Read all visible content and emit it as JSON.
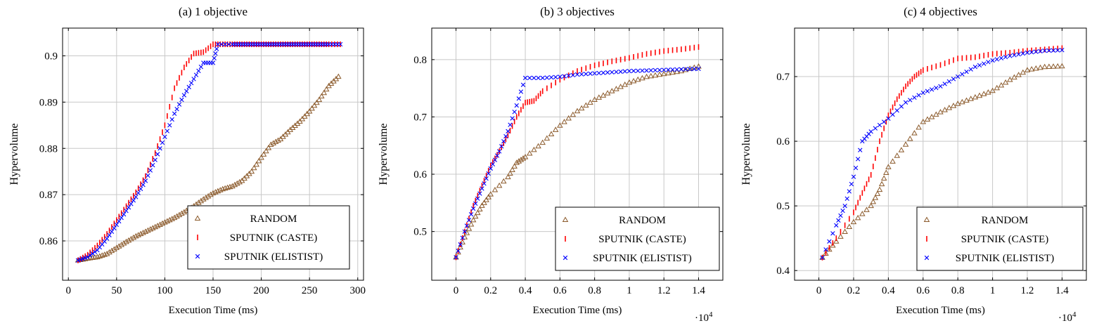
{
  "figure": {
    "panels_count": 3
  },
  "colors": {
    "random": "#8b5a2b",
    "caste": "#ff0000",
    "elitist": "#0000ff",
    "grid": "#c8c8c8"
  },
  "legend": {
    "entries": [
      "RANDOM",
      "SPUTNIK (CASTE)",
      "SPUTNIK (ELISTIST)"
    ],
    "markers": [
      "triangle-icon",
      "bar-icon",
      "cross-icon"
    ],
    "placement": "bottom-right"
  },
  "chart_data": [
    {
      "type": "scatter",
      "title": "(a) 1 objective",
      "xlabel": "Execution Time (ms)",
      "ylabel": "Hypervolume",
      "x_multiplier": "",
      "xlim": [
        -6,
        306
      ],
      "ylim": [
        0.8515,
        0.906
      ],
      "xticks": [
        0,
        50,
        100,
        150,
        200,
        250,
        300
      ],
      "xtick_labels": [
        "0",
        "50",
        "100",
        "150",
        "200",
        "250",
        "300"
      ],
      "yticks": [
        0.86,
        0.87,
        0.88,
        0.89,
        0.9
      ],
      "ytick_labels": [
        "0.86",
        "0.87",
        "0.88",
        "0.89",
        "0.9"
      ],
      "grid": true,
      "series": [
        {
          "name": "RANDOM",
          "points": [
            [
              10,
              0.8558
            ],
            [
              20,
              0.8562
            ],
            [
              30,
              0.8565
            ],
            [
              40,
              0.8572
            ],
            [
              50,
              0.8585
            ],
            [
              60,
              0.8598
            ],
            [
              70,
              0.861
            ],
            [
              80,
              0.862
            ],
            [
              90,
              0.863
            ],
            [
              100,
              0.864
            ],
            [
              110,
              0.865
            ],
            [
              120,
              0.8662
            ],
            [
              130,
              0.8675
            ],
            [
              140,
              0.869
            ],
            [
              150,
              0.8703
            ],
            [
              160,
              0.8712
            ],
            [
              170,
              0.8718
            ],
            [
              180,
              0.873
            ],
            [
              190,
              0.875
            ],
            [
              200,
              0.878
            ],
            [
              210,
              0.8808
            ],
            [
              220,
              0.882
            ],
            [
              230,
              0.884
            ],
            [
              240,
              0.8858
            ],
            [
              250,
              0.888
            ],
            [
              260,
              0.8905
            ],
            [
              270,
              0.8935
            ],
            [
              280,
              0.8955
            ]
          ]
        },
        {
          "name": "SPUTNIK (CASTE)",
          "points": [
            [
              10,
              0.8558
            ],
            [
              20,
              0.857
            ],
            [
              30,
              0.859
            ],
            [
              40,
              0.8615
            ],
            [
              50,
              0.8645
            ],
            [
              60,
              0.8675
            ],
            [
              70,
              0.8705
            ],
            [
              80,
              0.874
            ],
            [
              90,
              0.879
            ],
            [
              100,
              0.885
            ],
            [
              110,
              0.893
            ],
            [
              120,
              0.8975
            ],
            [
              130,
              0.9005
            ],
            [
              140,
              0.9008
            ],
            [
              150,
              0.9025
            ],
            [
              160,
              0.9025
            ],
            [
              170,
              0.9025
            ],
            [
              180,
              0.9025
            ],
            [
              190,
              0.9025
            ],
            [
              200,
              0.9025
            ],
            [
              210,
              0.9025
            ],
            [
              220,
              0.9025
            ],
            [
              230,
              0.9025
            ],
            [
              240,
              0.9025
            ],
            [
              250,
              0.9025
            ],
            [
              260,
              0.9025
            ],
            [
              270,
              0.9025
            ],
            [
              282,
              0.9025
            ]
          ]
        },
        {
          "name": "SPUTNIK (ELISTIST)",
          "points": [
            [
              10,
              0.8558
            ],
            [
              20,
              0.8565
            ],
            [
              30,
              0.858
            ],
            [
              40,
              0.8605
            ],
            [
              50,
              0.8635
            ],
            [
              60,
              0.8665
            ],
            [
              70,
              0.8695
            ],
            [
              80,
              0.873
            ],
            [
              90,
              0.8775
            ],
            [
              100,
              0.8825
            ],
            [
              110,
              0.8875
            ],
            [
              120,
              0.8915
            ],
            [
              130,
              0.895
            ],
            [
              140,
              0.8985
            ],
            [
              150,
              0.8985
            ],
            [
              155,
              0.9025
            ],
            [
              170,
              0.9025
            ],
            [
              180,
              0.9025
            ],
            [
              190,
              0.9025
            ],
            [
              200,
              0.9025
            ],
            [
              210,
              0.9025
            ],
            [
              220,
              0.9025
            ],
            [
              230,
              0.9025
            ],
            [
              240,
              0.9025
            ],
            [
              250,
              0.9025
            ],
            [
              260,
              0.9025
            ],
            [
              270,
              0.9025
            ],
            [
              282,
              0.9025
            ]
          ]
        }
      ]
    },
    {
      "type": "scatter",
      "title": "(b) 3 objectives",
      "xlabel": "Execution Time (ms)",
      "ylabel": "Hypervolume",
      "x_multiplier": "·10",
      "x_multiplier_exp": "4",
      "xlim": [
        -0.14,
        1.54
      ],
      "ylim": [
        0.415,
        0.855
      ],
      "xticks": [
        0,
        0.2,
        0.4,
        0.6,
        0.8,
        1.0,
        1.2,
        1.4
      ],
      "xtick_labels": [
        "0",
        "0.2",
        "0.4",
        "0.6",
        "0.8",
        "1",
        "1.2",
        "1.4"
      ],
      "yticks": [
        0.5,
        0.6,
        0.7,
        0.8
      ],
      "ytick_labels": [
        "0.5",
        "0.6",
        "0.7",
        "0.8"
      ],
      "grid": true,
      "series": [
        {
          "name": "RANDOM",
          "points": [
            [
              0,
              0.455
            ],
            [
              0.05,
              0.49
            ],
            [
              0.1,
              0.52
            ],
            [
              0.15,
              0.545
            ],
            [
              0.2,
              0.565
            ],
            [
              0.3,
              0.595
            ],
            [
              0.35,
              0.62
            ],
            [
              0.4,
              0.63
            ],
            [
              0.5,
              0.655
            ],
            [
              0.6,
              0.685
            ],
            [
              0.7,
              0.71
            ],
            [
              0.8,
              0.73
            ],
            [
              0.9,
              0.745
            ],
            [
              1.0,
              0.76
            ],
            [
              1.1,
              0.77
            ],
            [
              1.2,
              0.775
            ],
            [
              1.3,
              0.78
            ],
            [
              1.4,
              0.788
            ]
          ]
        },
        {
          "name": "SPUTNIK (CASTE)",
          "points": [
            [
              0,
              0.455
            ],
            [
              0.05,
              0.5
            ],
            [
              0.1,
              0.545
            ],
            [
              0.15,
              0.58
            ],
            [
              0.2,
              0.615
            ],
            [
              0.25,
              0.64
            ],
            [
              0.3,
              0.668
            ],
            [
              0.35,
              0.7
            ],
            [
              0.4,
              0.725
            ],
            [
              0.45,
              0.728
            ],
            [
              0.5,
              0.745
            ],
            [
              0.6,
              0.765
            ],
            [
              0.7,
              0.78
            ],
            [
              0.8,
              0.79
            ],
            [
              0.9,
              0.797
            ],
            [
              1.0,
              0.803
            ],
            [
              1.1,
              0.81
            ],
            [
              1.2,
              0.815
            ],
            [
              1.3,
              0.818
            ],
            [
              1.4,
              0.822
            ]
          ]
        },
        {
          "name": "SPUTNIK (ELISTIST)",
          "points": [
            [
              0,
              0.455
            ],
            [
              0.05,
              0.5
            ],
            [
              0.1,
              0.54
            ],
            [
              0.15,
              0.575
            ],
            [
              0.2,
              0.61
            ],
            [
              0.25,
              0.64
            ],
            [
              0.3,
              0.675
            ],
            [
              0.35,
              0.72
            ],
            [
              0.4,
              0.768
            ],
            [
              0.5,
              0.768
            ],
            [
              0.6,
              0.77
            ],
            [
              0.7,
              0.774
            ],
            [
              0.8,
              0.776
            ],
            [
              0.9,
              0.778
            ],
            [
              1.0,
              0.78
            ],
            [
              1.1,
              0.781
            ],
            [
              1.2,
              0.782
            ],
            [
              1.3,
              0.783
            ],
            [
              1.4,
              0.784
            ]
          ]
        }
      ]
    },
    {
      "type": "scatter",
      "title": "(c) 4 objectives",
      "xlabel": "Execution Time (ms)",
      "ylabel": "Hypervolume",
      "x_multiplier": "·10",
      "x_multiplier_exp": "4",
      "xlim": [
        -0.14,
        1.54
      ],
      "ylim": [
        0.385,
        0.775
      ],
      "xticks": [
        0,
        0.2,
        0.4,
        0.6,
        0.8,
        1.0,
        1.2,
        1.4
      ],
      "xtick_labels": [
        "0",
        "0.2",
        "0.4",
        "0.6",
        "0.8",
        "1",
        "1.2",
        "1.4"
      ],
      "yticks": [
        0.4,
        0.5,
        0.6,
        0.7
      ],
      "ytick_labels": [
        "0.4",
        "0.5",
        "0.6",
        "0.7"
      ],
      "grid": true,
      "series": [
        {
          "name": "RANDOM",
          "points": [
            [
              0.02,
              0.42
            ],
            [
              0.1,
              0.445
            ],
            [
              0.2,
              0.475
            ],
            [
              0.3,
              0.5
            ],
            [
              0.35,
              0.525
            ],
            [
              0.4,
              0.56
            ],
            [
              0.5,
              0.595
            ],
            [
              0.6,
              0.63
            ],
            [
              0.7,
              0.645
            ],
            [
              0.8,
              0.658
            ],
            [
              0.9,
              0.668
            ],
            [
              1.0,
              0.678
            ],
            [
              1.1,
              0.695
            ],
            [
              1.2,
              0.71
            ],
            [
              1.3,
              0.715
            ],
            [
              1.4,
              0.716
            ]
          ]
        },
        {
          "name": "SPUTNIK (CASTE)",
          "points": [
            [
              0.02,
              0.42
            ],
            [
              0.1,
              0.45
            ],
            [
              0.2,
              0.49
            ],
            [
              0.25,
              0.52
            ],
            [
              0.3,
              0.548
            ],
            [
              0.35,
              0.6
            ],
            [
              0.4,
              0.64
            ],
            [
              0.45,
              0.665
            ],
            [
              0.5,
              0.685
            ],
            [
              0.55,
              0.7
            ],
            [
              0.6,
              0.71
            ],
            [
              0.7,
              0.718
            ],
            [
              0.8,
              0.728
            ],
            [
              0.9,
              0.73
            ],
            [
              1.0,
              0.735
            ],
            [
              1.1,
              0.737
            ],
            [
              1.2,
              0.74
            ],
            [
              1.3,
              0.742
            ],
            [
              1.4,
              0.744
            ]
          ]
        },
        {
          "name": "SPUTNIK (ELISTIST)",
          "points": [
            [
              0.02,
              0.42
            ],
            [
              0.1,
              0.47
            ],
            [
              0.15,
              0.5
            ],
            [
              0.2,
              0.545
            ],
            [
              0.25,
              0.6
            ],
            [
              0.3,
              0.615
            ],
            [
              0.4,
              0.635
            ],
            [
              0.5,
              0.66
            ],
            [
              0.6,
              0.675
            ],
            [
              0.7,
              0.685
            ],
            [
              0.8,
              0.7
            ],
            [
              0.9,
              0.715
            ],
            [
              1.0,
              0.725
            ],
            [
              1.1,
              0.732
            ],
            [
              1.2,
              0.737
            ],
            [
              1.3,
              0.74
            ],
            [
              1.4,
              0.741
            ]
          ]
        }
      ]
    }
  ]
}
